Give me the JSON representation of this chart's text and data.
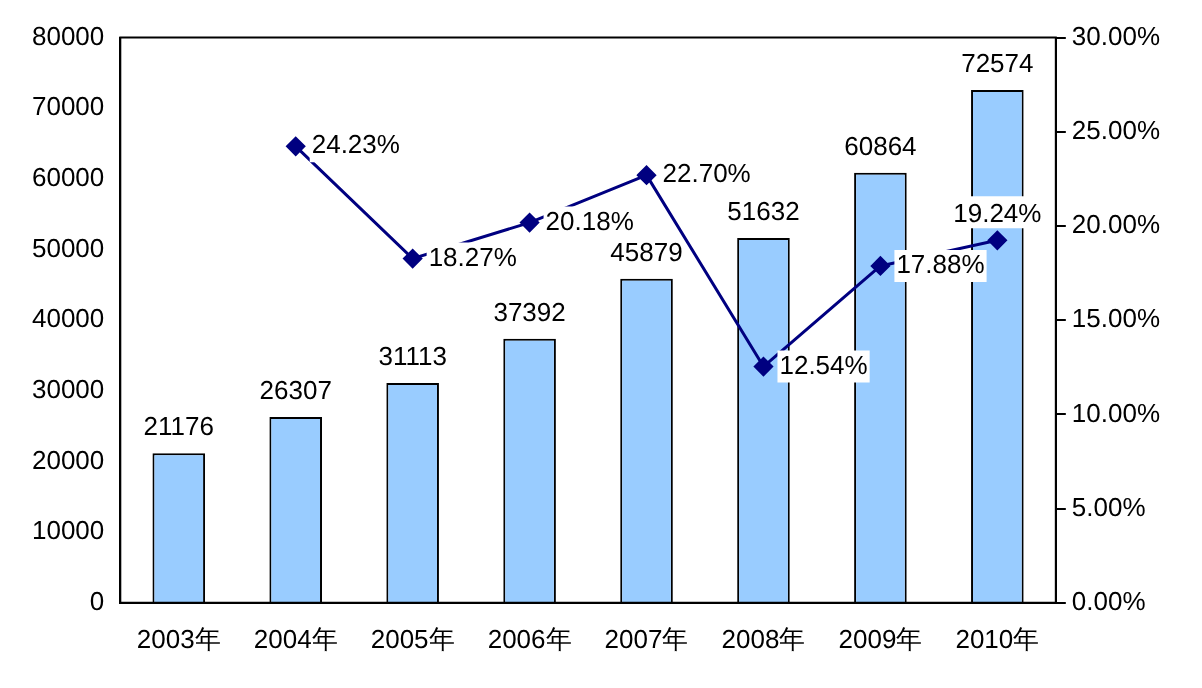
{
  "chart_data": {
    "type": "bar",
    "categories": [
      "2003年",
      "2004年",
      "2005年",
      "2006年",
      "2007年",
      "2008年",
      "2009年",
      "2010年"
    ],
    "series": [
      {
        "color": "#99ccff",
        "values": [
          21176,
          26307,
          31113,
          37392,
          45879,
          51632,
          60864,
          72574
        ],
        "value_labels": [
          "21176",
          "26307",
          "31113",
          "37392",
          "45879",
          "51632",
          "60864",
          "72574"
        ]
      },
      {
        "type": "line",
        "axis": "y2",
        "color": "#000080",
        "marker": "diamond",
        "values": [
          null,
          24.23,
          18.27,
          20.18,
          22.7,
          12.54,
          17.88,
          19.24
        ],
        "value_labels": [
          null,
          "24.23%",
          "18.27%",
          "20.18%",
          "22.70%",
          "12.54%",
          "17.88%",
          "19.24%"
        ]
      }
    ],
    "ylim": [
      0,
      80000
    ],
    "yticks": [
      0,
      10000,
      20000,
      30000,
      40000,
      50000,
      60000,
      70000,
      80000
    ],
    "y2lim": [
      0,
      30
    ],
    "y2ticks": [
      {
        "value": 0,
        "label": "0.00%"
      },
      {
        "value": 5,
        "label": "5.00%"
      },
      {
        "value": 10,
        "label": "10.00%"
      },
      {
        "value": 15,
        "label": "15.00%"
      },
      {
        "value": 20,
        "label": "20.00%"
      },
      {
        "value": 25,
        "label": "25.00%"
      },
      {
        "value": 30,
        "label": "30.00%"
      }
    ],
    "grid": false,
    "legend": false
  }
}
